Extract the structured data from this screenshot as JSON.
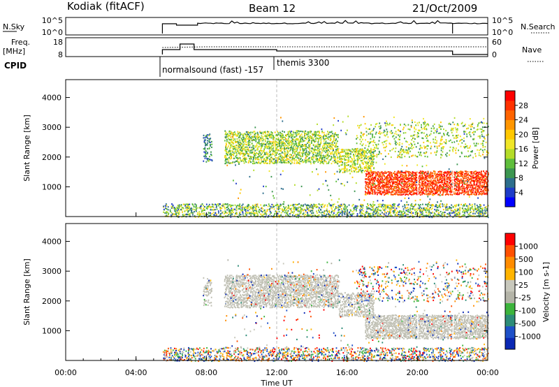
{
  "header": {
    "station": "Kodiak (fitACF)",
    "beam": "Beam 12",
    "date": "21/Oct/2009"
  },
  "noise_panel": {
    "left_label": "N.Sky",
    "left_ticks": [
      "10^5",
      "10^0"
    ],
    "right_ticks": [
      "10^5",
      "10^0"
    ],
    "right_label": "N.Search"
  },
  "freq_panel": {
    "left_label_line1": "Freq.",
    "left_label_line2": "[MHz]",
    "left_ticks": [
      "18",
      "8"
    ],
    "right_ticks": [
      "60",
      "0"
    ],
    "right_label": "Nave"
  },
  "cpid": {
    "label": "CPID",
    "modes": [
      {
        "name": "normalsound (fast)",
        "id": "-157",
        "start_hour": 5.5
      },
      {
        "name": "themis",
        "id": "3300",
        "start_hour": 12.0
      }
    ]
  },
  "xaxis": {
    "ticks": [
      "00:00",
      "04:00",
      "08:00",
      "12:00",
      "16:00",
      "20:00",
      "00:00"
    ],
    "label": "Time UT"
  },
  "chart_data": [
    {
      "type": "heatmap",
      "title": "",
      "quantity": "Power",
      "ylabel": "Slant Range [km]",
      "yticks": [
        "1000",
        "2000",
        "3000",
        "4000"
      ],
      "ylim": [
        0,
        4600
      ],
      "xlim_hours": [
        0,
        24
      ],
      "colorbar": {
        "label": "Power [dB]",
        "ticks": [
          "4",
          "8",
          "12",
          "16",
          "20",
          "24",
          "28"
        ],
        "range": [
          0,
          32
        ],
        "colors": [
          "#0000ff",
          "#1e3cc8",
          "#2d6e8c",
          "#3c9650",
          "#5fbe3c",
          "#b4dc28",
          "#f0e628",
          "#ffc800",
          "#ff9600",
          "#ff6400",
          "#ff3200",
          "#ff0000"
        ]
      },
      "scatter_regions": [
        {
          "t": [
            5.5,
            24
          ],
          "r": [
            0,
            450
          ],
          "density": 0.55,
          "v": [
            4,
            20
          ]
        },
        {
          "t": [
            7.8,
            8.3
          ],
          "r": [
            1850,
            2800
          ],
          "density": 0.5,
          "v": [
            4,
            14
          ]
        },
        {
          "t": [
            9.0,
            15.5
          ],
          "r": [
            1800,
            2900
          ],
          "density": 0.65,
          "v": [
            8,
            20
          ]
        },
        {
          "t": [
            15.5,
            17.5
          ],
          "r": [
            1500,
            2300
          ],
          "density": 0.6,
          "v": [
            10,
            20
          ]
        },
        {
          "t": [
            17.0,
            24
          ],
          "r": [
            750,
            1550
          ],
          "density": 0.85,
          "v": [
            24,
            31
          ]
        },
        {
          "t": [
            16.5,
            24
          ],
          "r": [
            2000,
            3200
          ],
          "density": 0.2,
          "v": [
            8,
            20
          ]
        },
        {
          "t": [
            9.0,
            24
          ],
          "r": [
            400,
            3400
          ],
          "density": 0.02,
          "v": [
            4,
            24
          ]
        }
      ]
    },
    {
      "type": "heatmap",
      "title": "",
      "quantity": "Velocity",
      "ylabel": "Slant Range [km]",
      "yticks": [
        "1000",
        "2000",
        "3000",
        "4000"
      ],
      "ylim": [
        0,
        4600
      ],
      "xlim_hours": [
        0,
        24
      ],
      "colorbar": {
        "label": "Velocity [m s-1]",
        "ticks": [
          "1000",
          "500",
          "100",
          "25",
          "-25",
          "-100",
          "-500",
          "-1000"
        ],
        "colors": [
          "#0a28b4",
          "#1e50c8",
          "#2d8c78",
          "#3cb43c",
          "#b4b4a8",
          "#c8c8bc",
          "#ffb400",
          "#ff8c00",
          "#ff5000",
          "#ff0000"
        ]
      },
      "scatter_regions": [
        {
          "t": [
            5.5,
            24
          ],
          "r": [
            0,
            450
          ],
          "density": 0.45,
          "kind": "mixed"
        },
        {
          "t": [
            7.8,
            8.3
          ],
          "r": [
            1850,
            2800
          ],
          "density": 0.5,
          "kind": "ground"
        },
        {
          "t": [
            9.0,
            15.5
          ],
          "r": [
            1800,
            2900
          ],
          "density": 0.75,
          "kind": "ground"
        },
        {
          "t": [
            15.5,
            17.5
          ],
          "r": [
            1500,
            2300
          ],
          "density": 0.6,
          "kind": "ground"
        },
        {
          "t": [
            17.0,
            24
          ],
          "r": [
            750,
            1550
          ],
          "density": 0.85,
          "kind": "ground"
        },
        {
          "t": [
            16.5,
            24
          ],
          "r": [
            2000,
            3200
          ],
          "density": 0.15,
          "kind": "mixed"
        },
        {
          "t": [
            9.0,
            24
          ],
          "r": [
            400,
            3400
          ],
          "density": 0.02,
          "kind": "mixed"
        }
      ]
    }
  ]
}
